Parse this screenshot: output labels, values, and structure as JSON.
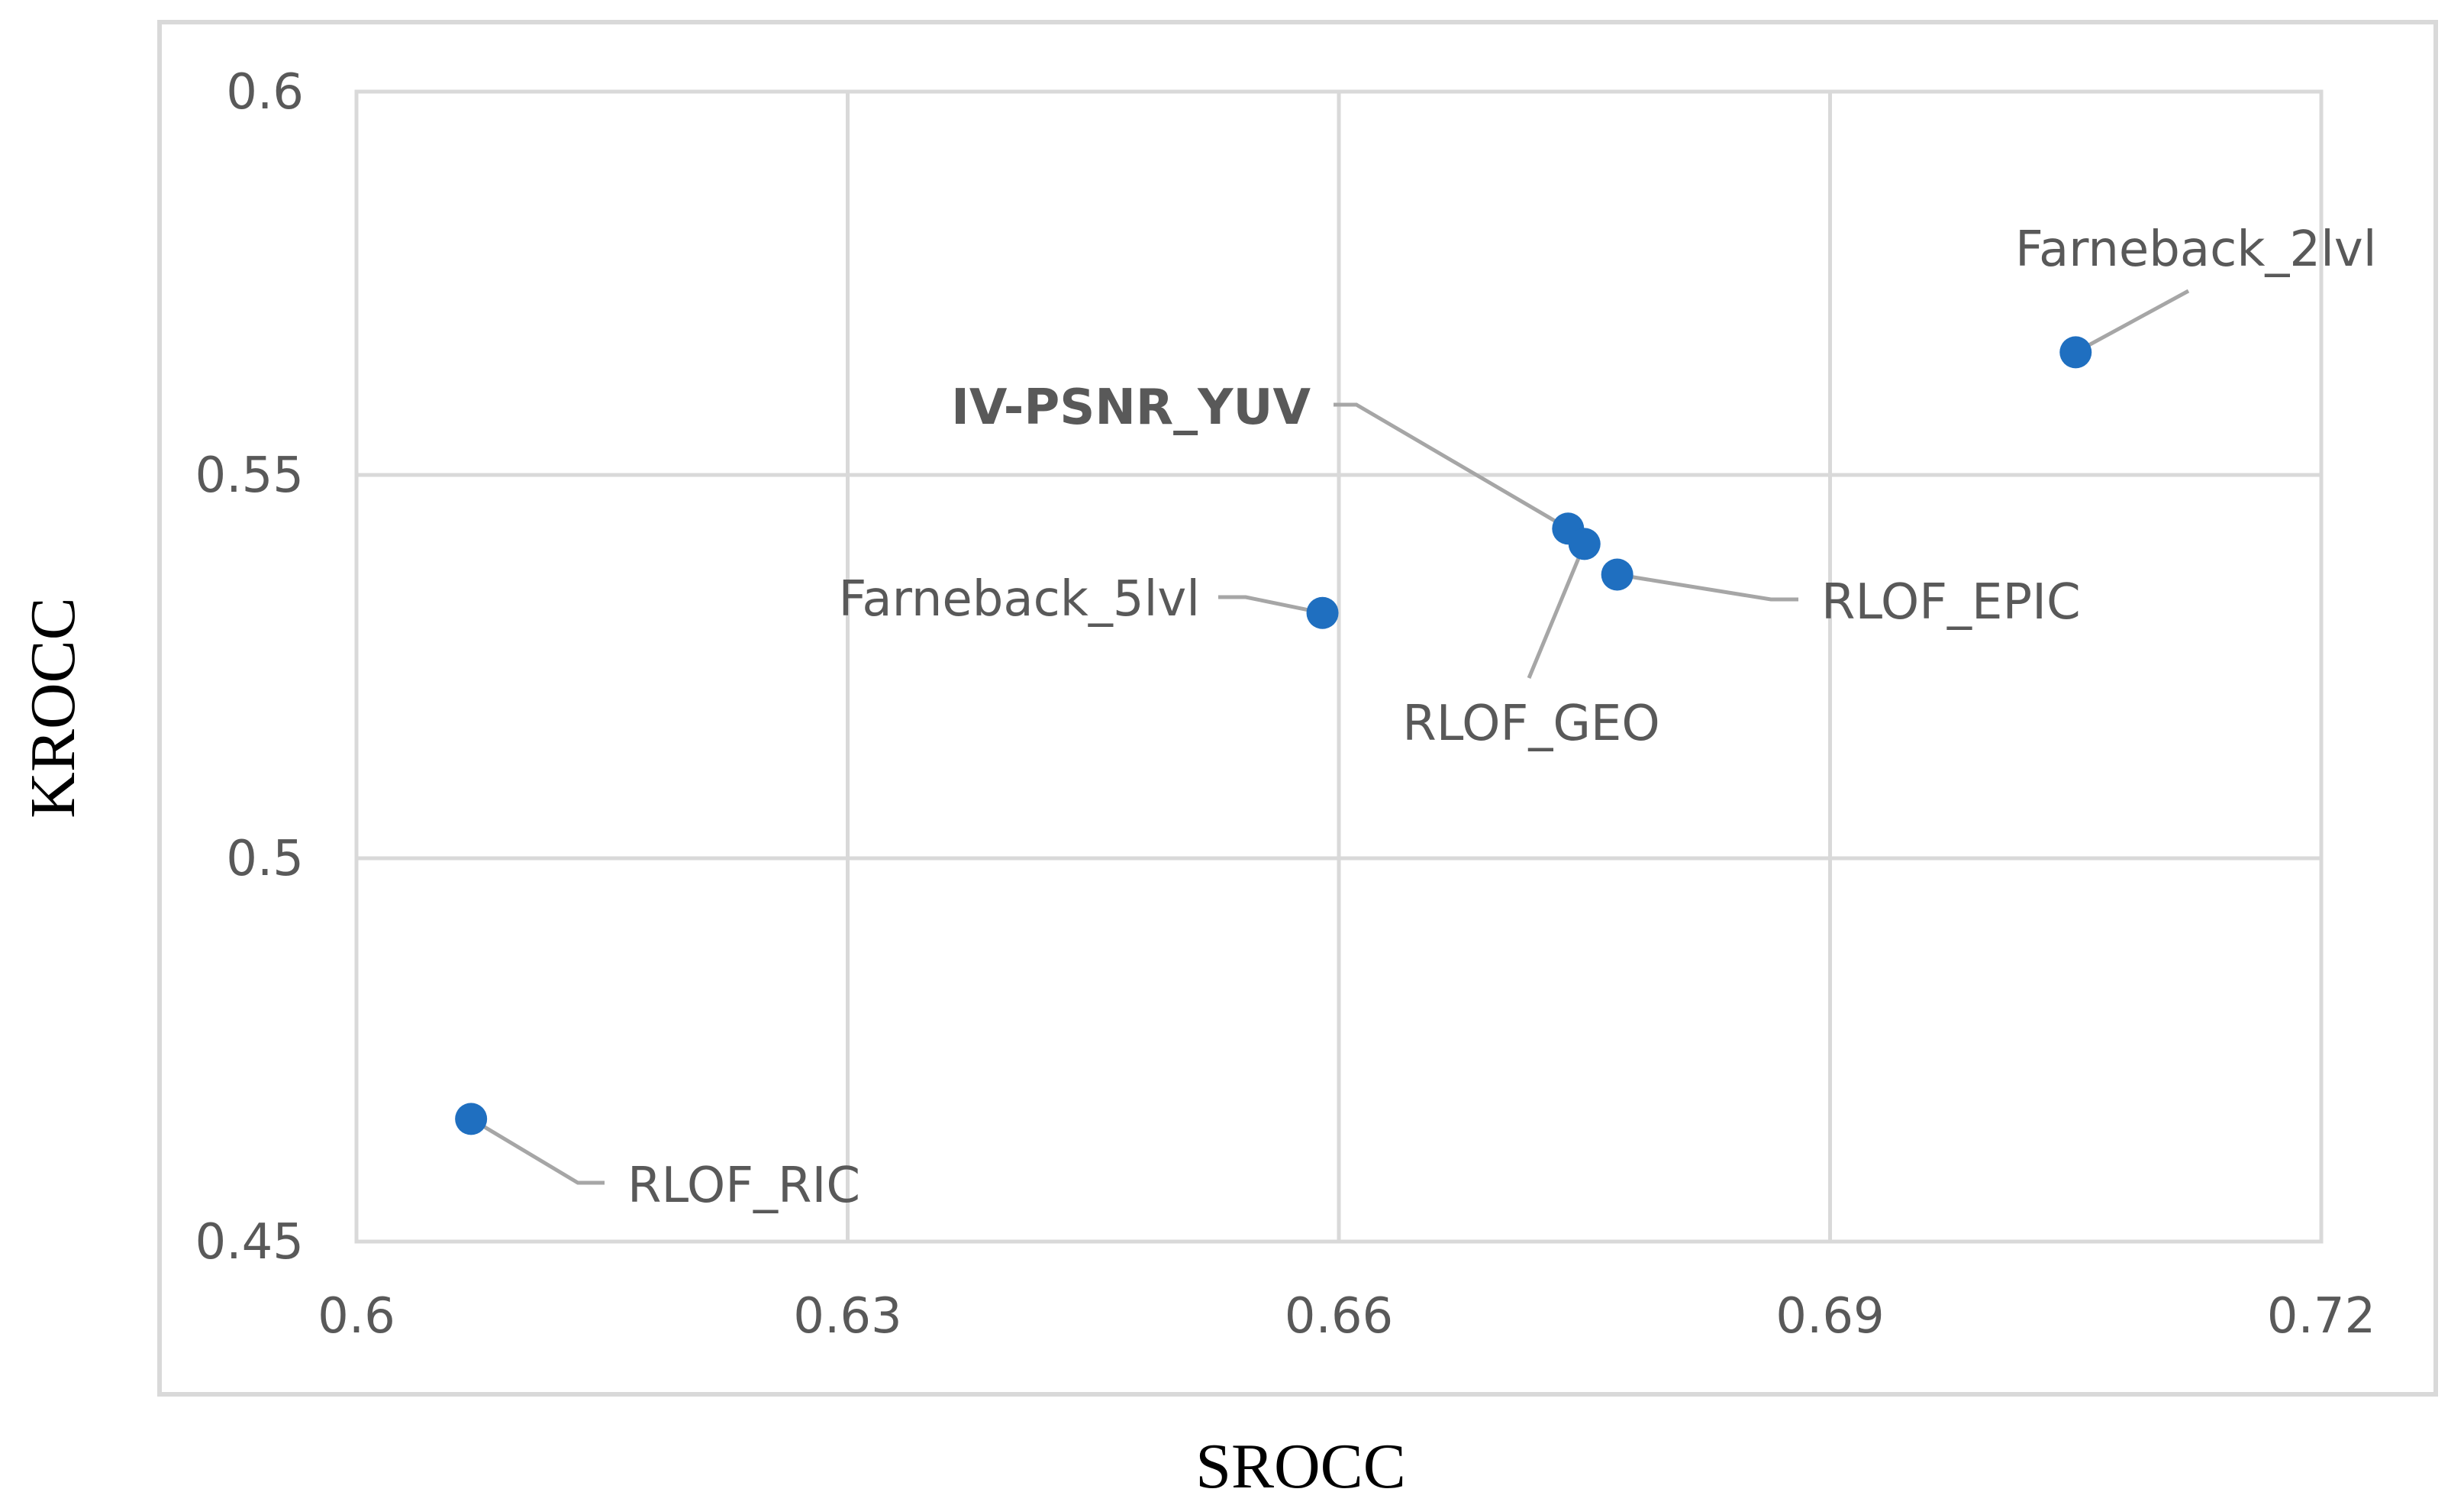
{
  "chart_data": {
    "type": "scatter",
    "xlabel": "SROCC",
    "ylabel": "KROCC",
    "xlim": [
      0.6,
      0.72
    ],
    "ylim": [
      0.45,
      0.6
    ],
    "x_ticks": [
      "0.6",
      "0.63",
      "0.66",
      "0.69",
      "0.72"
    ],
    "y_ticks": [
      "0.45",
      "0.5",
      "0.55",
      "0.6"
    ],
    "grid": true,
    "legend": "none",
    "marker_color": "#1f6fc0",
    "points": [
      {
        "label": "Farneback_2lvl",
        "x": 0.705,
        "y": 0.566,
        "bold": false
      },
      {
        "label": "IV-PSNR_YUV",
        "x": 0.674,
        "y": 0.543,
        "bold": true
      },
      {
        "label": "RLOF_GEO",
        "x": 0.675,
        "y": 0.541,
        "bold": false
      },
      {
        "label": "RLOF_EPIC",
        "x": 0.677,
        "y": 0.537,
        "bold": false
      },
      {
        "label": "Farneback_5lvl",
        "x": 0.659,
        "y": 0.532,
        "bold": false
      },
      {
        "label": "RLOF_RIC",
        "x": 0.607,
        "y": 0.466,
        "bold": false
      }
    ]
  }
}
